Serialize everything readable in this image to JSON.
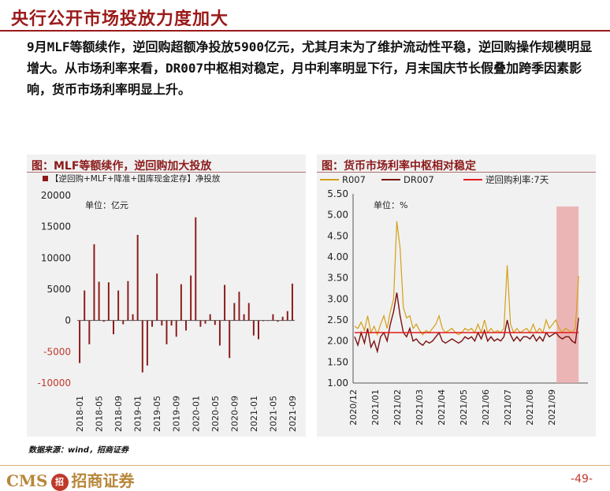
{
  "page_title": "央行公开市场投放力度加大",
  "body_paragraph": "9月MLF等额续作，逆回购超额净投放5900亿元，尤其月末为了维护流动性平稳，逆回购操作规模明显增大。从市场利率来看，DR007中枢相对稳定，月中利率明显下行，月末国庆节长假叠加跨季因素影响，货币市场利率明显上升。",
  "footer": {
    "source": "数据来源：wind，招商证券",
    "logo_text": "CMS",
    "logo_mark": "招",
    "logo_cn": "招商证券",
    "page_number": "-49-"
  },
  "colors": {
    "accent": "#9b1b1b",
    "bar": "#8b1a1a",
    "r007": "#d4a017",
    "dr007": "#7a0f0f",
    "repo": "#e31a1c",
    "highlight": "#e8a0a0"
  },
  "chart_data": [
    {
      "type": "bar",
      "title": "图：MLF等额续作，逆回购加大投放",
      "legend": "【逆回购+MLF+降准+国库现金定存】净投放",
      "unit_note": "单位：亿元",
      "ylim": [
        -10000,
        20000
      ],
      "yticks": [
        "-10000",
        "-5000",
        "0",
        "5000",
        "10000",
        "15000",
        "20000"
      ],
      "ytick_values": [
        -10000,
        -5000,
        0,
        5000,
        10000,
        15000,
        20000
      ],
      "xtick_labels": [
        "2018-01",
        "2018-05",
        "2018-09",
        "2019-01",
        "2019-05",
        "2019-09",
        "2020-01",
        "2020-05",
        "2020-09",
        "2021-01",
        "2021-05",
        "2021-09"
      ],
      "categories": [
        "2018-01",
        "2018-02",
        "2018-03",
        "2018-04",
        "2018-05",
        "2018-06",
        "2018-07",
        "2018-08",
        "2018-09",
        "2018-10",
        "2018-11",
        "2018-12",
        "2019-01",
        "2019-02",
        "2019-03",
        "2019-04",
        "2019-05",
        "2019-06",
        "2019-07",
        "2019-08",
        "2019-09",
        "2019-10",
        "2019-11",
        "2019-12",
        "2020-01",
        "2020-02",
        "2020-03",
        "2020-04",
        "2020-05",
        "2020-06",
        "2020-07",
        "2020-08",
        "2020-09",
        "2020-10",
        "2020-11",
        "2020-12",
        "2021-01",
        "2021-02",
        "2021-03",
        "2021-04",
        "2021-05",
        "2021-06",
        "2021-07",
        "2021-08",
        "2021-09"
      ],
      "values": [
        -6800,
        4800,
        -3800,
        12200,
        6200,
        -200,
        6100,
        -2200,
        4800,
        -600,
        6300,
        1000,
        13700,
        -8300,
        -7200,
        -1000,
        7500,
        -800,
        -3800,
        -800,
        -2600,
        5800,
        -1600,
        7200,
        16500,
        -1000,
        -500,
        1000,
        -700,
        -4000,
        5700,
        -6000,
        2800,
        4600,
        1000,
        2800,
        -2400,
        -3000,
        -100,
        0,
        1000,
        -200,
        600,
        1500,
        5900
      ],
      "xlabel": "",
      "ylabel": ""
    },
    {
      "type": "line",
      "title": "图：货币市场利率中枢相对稳定",
      "unit_note": "单位：%",
      "ylim": [
        1.0,
        5.5
      ],
      "yticks": [
        "1.00",
        "1.50",
        "2.00",
        "2.50",
        "3.00",
        "3.50",
        "4.00",
        "4.50",
        "5.00",
        "5.50"
      ],
      "ytick_values": [
        1.0,
        1.5,
        2.0,
        2.5,
        3.0,
        3.5,
        4.0,
        4.5,
        5.0,
        5.5
      ],
      "xtick_labels": [
        "2020/12",
        "2021/01",
        "2021/02",
        "2021/03",
        "2021/04",
        "2021/05",
        "2021/06",
        "2021/07",
        "2021/08",
        "2021/09"
      ],
      "highlight_label": "2021/09",
      "series": [
        {
          "name": "R007",
          "values": [
            2.35,
            2.3,
            2.45,
            2.25,
            2.6,
            2.2,
            2.35,
            2.15,
            2.4,
            2.6,
            2.3,
            2.7,
            3.0,
            4.85,
            4.2,
            2.8,
            2.55,
            2.6,
            2.3,
            2.4,
            2.25,
            2.15,
            2.25,
            2.2,
            2.3,
            2.4,
            2.6,
            2.3,
            2.2,
            2.25,
            2.3,
            2.2,
            2.15,
            2.2,
            2.3,
            2.25,
            2.3,
            2.2,
            2.4,
            2.2,
            2.5,
            2.2,
            2.3,
            2.2,
            2.25,
            2.2,
            2.3,
            3.8,
            2.4,
            2.2,
            2.3,
            2.2,
            2.25,
            2.3,
            2.2,
            2.4,
            2.2,
            2.3,
            2.2,
            2.5,
            2.3,
            2.4,
            2.5,
            2.3,
            2.2,
            2.3,
            2.25,
            2.2,
            2.3,
            3.55
          ]
        },
        {
          "name": "DR007",
          "values": [
            2.1,
            1.9,
            2.2,
            1.95,
            2.3,
            1.85,
            2.0,
            1.75,
            2.1,
            2.2,
            2.0,
            2.4,
            2.7,
            3.15,
            2.6,
            2.2,
            2.1,
            2.3,
            2.0,
            2.05,
            1.95,
            1.9,
            2.0,
            1.95,
            2.0,
            2.1,
            2.2,
            2.0,
            1.95,
            2.0,
            2.05,
            2.0,
            1.95,
            2.0,
            2.1,
            2.05,
            2.1,
            2.0,
            2.2,
            2.05,
            2.25,
            2.0,
            2.1,
            2.0,
            2.05,
            2.0,
            2.1,
            2.5,
            2.15,
            2.0,
            2.1,
            2.0,
            2.1,
            2.1,
            2.05,
            2.15,
            2.0,
            2.1,
            2.0,
            2.2,
            2.1,
            2.15,
            2.2,
            2.1,
            2.05,
            2.1,
            2.1,
            2.0,
            1.95,
            2.55
          ]
        },
        {
          "name": "逆回购利率:7天",
          "values": [
            2.2,
            2.2
          ]
        }
      ]
    }
  ]
}
